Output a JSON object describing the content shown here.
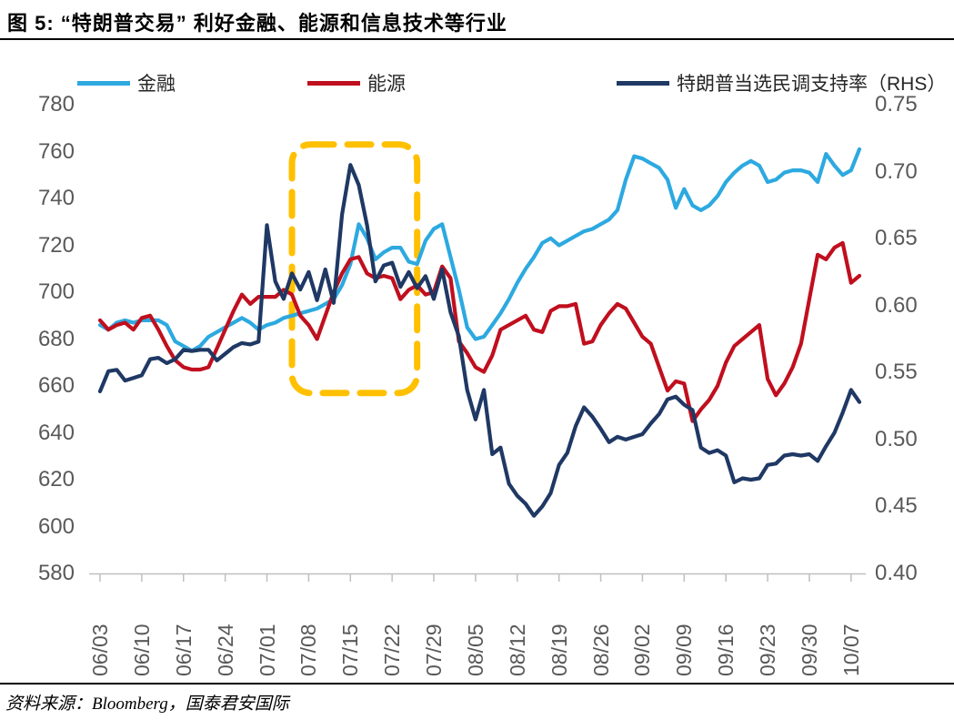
{
  "header": {
    "title": "图 5:  “特朗普交易” 利好金融、能源和信息技术等行业"
  },
  "footer": {
    "source": "资料来源：Bloomberg，国泰君安国际"
  },
  "chart_data": {
    "type": "line",
    "title": "图 5: “特朗普交易”利好金融、能源和信息技术等行业",
    "grid": false,
    "legend_position": "top",
    "x": [
      "06/03",
      "06/04",
      "06/05",
      "06/06",
      "06/07",
      "06/10",
      "06/11",
      "06/12",
      "06/13",
      "06/14",
      "06/17",
      "06/18",
      "06/19",
      "06/20",
      "06/21",
      "06/24",
      "06/25",
      "06/26",
      "06/27",
      "06/28",
      "07/01",
      "07/02",
      "07/03",
      "07/04",
      "07/05",
      "07/08",
      "07/09",
      "07/10",
      "07/11",
      "07/12",
      "07/15",
      "07/16",
      "07/17",
      "07/18",
      "07/19",
      "07/22",
      "07/23",
      "07/24",
      "07/25",
      "07/26",
      "07/29",
      "07/30",
      "07/31",
      "08/01",
      "08/02",
      "08/05",
      "08/06",
      "08/07",
      "08/08",
      "08/09",
      "08/12",
      "08/13",
      "08/14",
      "08/15",
      "08/16",
      "08/19",
      "08/20",
      "08/21",
      "08/22",
      "08/23",
      "08/26",
      "08/27",
      "08/28",
      "08/29",
      "08/30",
      "09/02",
      "09/03",
      "09/04",
      "09/05",
      "09/06",
      "09/09",
      "09/10",
      "09/11",
      "09/12",
      "09/13",
      "09/16",
      "09/17",
      "09/18",
      "09/19",
      "09/20",
      "09/23",
      "09/24",
      "09/25",
      "09/26",
      "09/27",
      "09/30",
      "10/01",
      "10/02",
      "10/03",
      "10/04",
      "10/07",
      "10/08"
    ],
    "x_tick_labels": [
      "06/03",
      "06/10",
      "06/17",
      "06/24",
      "07/01",
      "07/08",
      "07/15",
      "07/22",
      "07/29",
      "08/05",
      "08/12",
      "08/19",
      "08/26",
      "09/02",
      "09/09",
      "09/16",
      "09/23",
      "09/30",
      "10/07"
    ],
    "left_axis": {
      "range": [
        580,
        780
      ],
      "ticks": [
        "780",
        "760",
        "740",
        "720",
        "700",
        "680",
        "660",
        "640",
        "620",
        "600",
        "580"
      ]
    },
    "right_axis": {
      "range": [
        0.4,
        0.75
      ],
      "ticks": [
        "0.75",
        "0.70",
        "0.65",
        "0.60",
        "0.55",
        "0.50",
        "0.45",
        "0.40"
      ]
    },
    "series": [
      {
        "name": "金融",
        "axis": "left",
        "color": "#2da9e0",
        "values": [
          686,
          684,
          687,
          688,
          687,
          688,
          688,
          688,
          686,
          679,
          677,
          675,
          677,
          681,
          683,
          685,
          687,
          689,
          687,
          684,
          686,
          687,
          689,
          690,
          691,
          692,
          693,
          695,
          697,
          703,
          712,
          729,
          723,
          714,
          717,
          719,
          719,
          713,
          712,
          722,
          727,
          729,
          715,
          701,
          685,
          680,
          681,
          686,
          691,
          697,
          704,
          710,
          715,
          721,
          723,
          720,
          722,
          724,
          726,
          727,
          729,
          731,
          735,
          748,
          758,
          757,
          755,
          753,
          748,
          736,
          744,
          737,
          735,
          737,
          741,
          747,
          751,
          754,
          756,
          754,
          747,
          748,
          751,
          752,
          752,
          751,
          747,
          759,
          754,
          750,
          752,
          761
        ]
      },
      {
        "name": "能源",
        "axis": "left",
        "color": "#c00f1e",
        "values": [
          688,
          684,
          686,
          687,
          684,
          689,
          690,
          684,
          677,
          671,
          668,
          667,
          667,
          668,
          676,
          684,
          692,
          699,
          695,
          698,
          698,
          698,
          701,
          699,
          690,
          686,
          680,
          690,
          700,
          708,
          714,
          715,
          708,
          706,
          707,
          706,
          697,
          701,
          703,
          699,
          700,
          711,
          706,
          679,
          674,
          668,
          666,
          673,
          684,
          686,
          688,
          690,
          684,
          683,
          692,
          694,
          694,
          695,
          678,
          679,
          686,
          691,
          695,
          693,
          687,
          681,
          678,
          668,
          658,
          662,
          661,
          645,
          650,
          654,
          660,
          670,
          677,
          680,
          683,
          686,
          663,
          656,
          661,
          668,
          678,
          697,
          716,
          714,
          719,
          721,
          704,
          707
        ]
      },
      {
        "name": "特朗普当选民调支持率（RHS）",
        "axis": "right",
        "color": "#1f3864",
        "values": [
          0.536,
          0.551,
          0.552,
          0.544,
          0.546,
          0.548,
          0.56,
          0.561,
          0.557,
          0.56,
          0.567,
          0.566,
          0.567,
          0.567,
          0.559,
          0.564,
          0.569,
          0.572,
          0.571,
          0.573,
          0.66,
          0.618,
          0.605,
          0.624,
          0.612,
          0.625,
          0.604,
          0.627,
          0.602,
          0.668,
          0.705,
          0.69,
          0.66,
          0.618,
          0.63,
          0.632,
          0.614,
          0.625,
          0.613,
          0.622,
          0.605,
          0.627,
          0.595,
          0.577,
          0.537,
          0.515,
          0.537,
          0.489,
          0.494,
          0.467,
          0.458,
          0.452,
          0.443,
          0.45,
          0.46,
          0.481,
          0.49,
          0.51,
          0.524,
          0.517,
          0.508,
          0.498,
          0.502,
          0.5,
          0.502,
          0.504,
          0.512,
          0.519,
          0.53,
          0.532,
          0.526,
          0.522,
          0.494,
          0.49,
          0.492,
          0.488,
          0.468,
          0.471,
          0.47,
          0.471,
          0.481,
          0.482,
          0.488,
          0.489,
          0.488,
          0.489,
          0.484,
          0.495,
          0.505,
          0.52,
          0.537,
          0.528
        ]
      }
    ],
    "highlight_box": {
      "color": "#ffc000",
      "x_from": "07/04",
      "x_to": "07/25",
      "top_value": 763,
      "bottom_value": 657
    }
  }
}
